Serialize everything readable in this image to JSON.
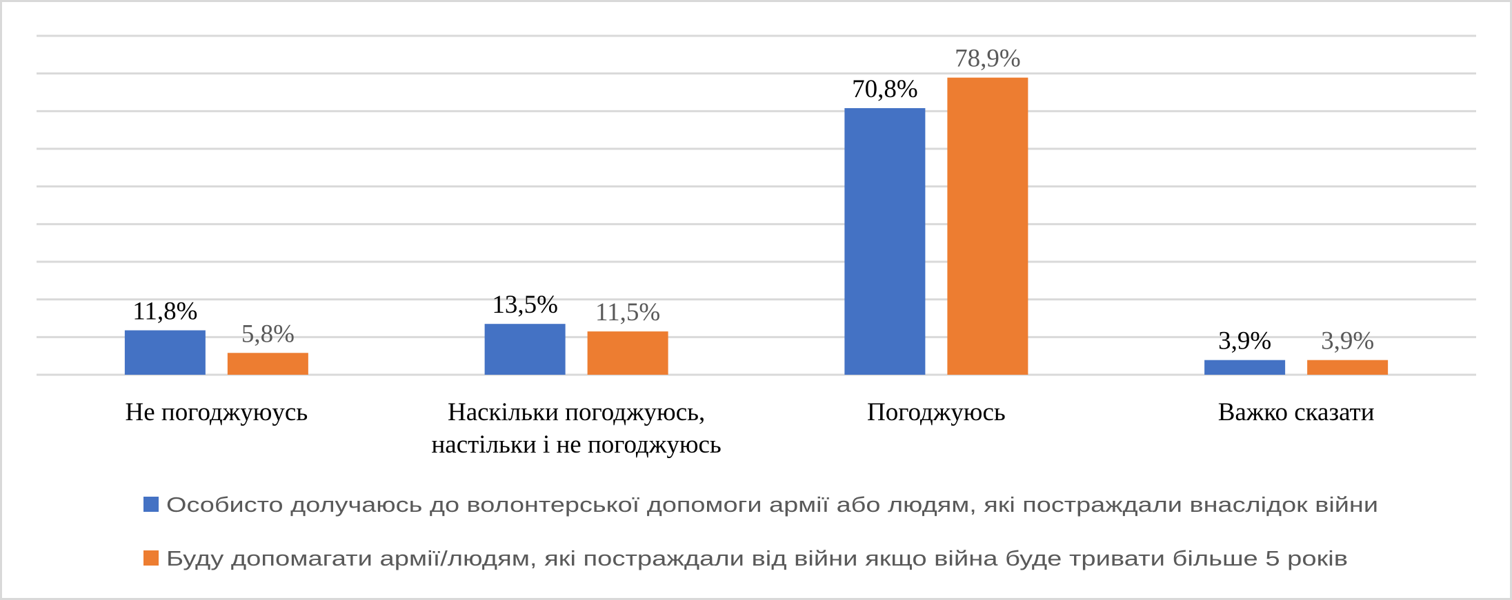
{
  "chart_data": {
    "type": "bar",
    "categories": [
      [
        "Не погоджуюусь"
      ],
      [
        "Наскільки погоджуюсь,",
        "настільки і не погоджуюсь"
      ],
      [
        "Погоджуюсь"
      ],
      [
        "Важко сказати"
      ]
    ],
    "series": [
      {
        "name": "Особисто долучаюсь до волонтерської допомоги армії або людям, які постраждали внаслідок війни",
        "values": [
          11.8,
          13.5,
          70.8,
          3.9
        ],
        "labels": [
          "11,8%",
          "13,5%",
          "70,8%",
          "3,9%"
        ],
        "color": "#4472C4",
        "label_color": "#000000"
      },
      {
        "name": "Буду допомагати армії/людям, які постраждали від війни якщо війна буде тривати більше 5 років",
        "values": [
          5.8,
          11.5,
          78.9,
          3.9
        ],
        "labels": [
          "5,8%",
          "11,5%",
          "78,9%",
          "3,9%"
        ],
        "color": "#ED7D31",
        "label_color": "#595959"
      }
    ],
    "ylim": [
      0,
      90
    ],
    "ytick_step": 10,
    "y_axis_labels_shown": false,
    "grid": true,
    "legend": "bottom",
    "title": "",
    "xlabel": "",
    "ylabel": ""
  }
}
